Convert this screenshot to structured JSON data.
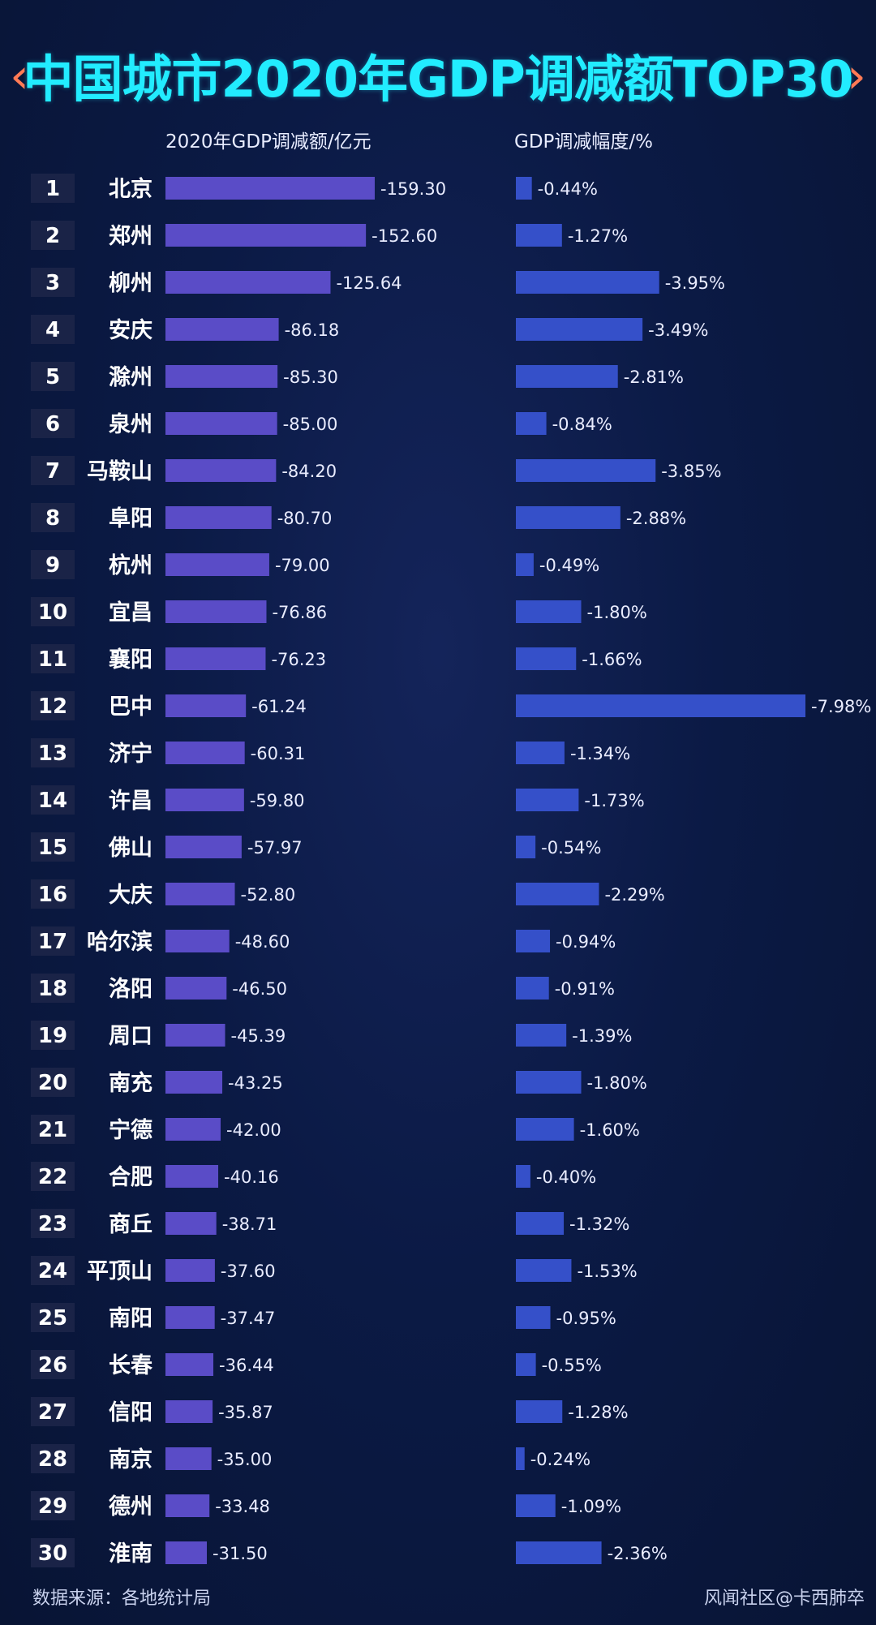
{
  "header": {
    "title": "中国城市2020年GDP调减额TOP30",
    "left_chevron": "‹",
    "right_chevron": "›"
  },
  "colors": {
    "title": "#22ecff",
    "chevron": "#ff7a55",
    "bar_left": "#5a4cc7",
    "bar_right": "#3550c9",
    "background": "#0b1a45"
  },
  "footer": {
    "source": "数据来源：各地统计局",
    "credit": "风闻社区@卡西肺卒"
  },
  "chart_data": [
    {
      "type": "bar",
      "orientation": "horizontal",
      "title": "2020年GDP调减额/亿元",
      "ranks": [
        "1",
        "2",
        "3",
        "4",
        "5",
        "6",
        "7",
        "8",
        "9",
        "10",
        "11",
        "12",
        "13",
        "14",
        "15",
        "16",
        "17",
        "18",
        "19",
        "20",
        "21",
        "22",
        "23",
        "24",
        "25",
        "26",
        "27",
        "28",
        "29",
        "30"
      ],
      "categories": [
        "北京",
        "郑州",
        "柳州",
        "安庆",
        "滁州",
        "泉州",
        "马鞍山",
        "阜阳",
        "杭州",
        "宜昌",
        "襄阳",
        "巴中",
        "济宁",
        "许昌",
        "佛山",
        "大庆",
        "哈尔滨",
        "洛阳",
        "周口",
        "南充",
        "宁德",
        "合肥",
        "商丘",
        "平顶山",
        "南阳",
        "长春",
        "信阳",
        "南京",
        "德州",
        "淮南"
      ],
      "values": [
        -159.3,
        -152.6,
        -125.64,
        -86.18,
        -85.3,
        -85.0,
        -84.2,
        -80.7,
        -79.0,
        -76.86,
        -76.23,
        -61.24,
        -60.31,
        -59.8,
        -57.97,
        -52.8,
        -48.6,
        -46.5,
        -45.39,
        -43.25,
        -42.0,
        -40.16,
        -38.71,
        -37.6,
        -37.47,
        -36.44,
        -35.87,
        -35.0,
        -33.48,
        -31.5
      ],
      "labels": [
        "-159.30",
        "-152.60",
        "-125.64",
        "-86.18",
        "-85.30",
        "-85.00",
        "-84.20",
        "-80.70",
        "-79.00",
        "-76.86",
        "-76.23",
        "-61.24",
        "-60.31",
        "-59.80",
        "-57.97",
        "-52.80",
        "-48.60",
        "-46.50",
        "-45.39",
        "-43.25",
        "-42.00",
        "-40.16",
        "-38.71",
        "-37.60",
        "-37.47",
        "-36.44",
        "-35.87",
        "-35.00",
        "-33.48",
        "-31.50"
      ],
      "color": "#5a4cc7"
    },
    {
      "type": "bar",
      "orientation": "horizontal",
      "title": "GDP调减幅度/%",
      "categories": [
        "北京",
        "郑州",
        "柳州",
        "安庆",
        "滁州",
        "泉州",
        "马鞍山",
        "阜阳",
        "杭州",
        "宜昌",
        "襄阳",
        "巴中",
        "济宁",
        "许昌",
        "佛山",
        "大庆",
        "哈尔滨",
        "洛阳",
        "周口",
        "南充",
        "宁德",
        "合肥",
        "商丘",
        "平顶山",
        "南阳",
        "长春",
        "信阳",
        "南京",
        "德州",
        "淮南"
      ],
      "values": [
        -0.44,
        -1.27,
        -3.95,
        -3.49,
        -2.81,
        -0.84,
        -3.85,
        -2.88,
        -0.49,
        -1.8,
        -1.66,
        -7.98,
        -1.34,
        -1.73,
        -0.54,
        -2.29,
        -0.94,
        -0.91,
        -1.39,
        -1.8,
        -1.6,
        -0.4,
        -1.32,
        -1.53,
        -0.95,
        -0.55,
        -1.28,
        -0.24,
        -1.09,
        -2.36
      ],
      "labels": [
        "-0.44%",
        "-1.27%",
        "-3.95%",
        "-3.49%",
        "-2.81%",
        "-0.84%",
        "-3.85%",
        "-2.88%",
        "-0.49%",
        "-1.80%",
        "-1.66%",
        "-7.98%",
        "-1.34%",
        "-1.73%",
        "-0.54%",
        "-2.29%",
        "-0.94%",
        "-0.91%",
        "-1.39%",
        "-1.80%",
        "-1.60%",
        "-0.40%",
        "-1.32%",
        "-1.53%",
        "-0.95%",
        "-0.55%",
        "-1.28%",
        "-0.24%",
        "-1.09%",
        "-2.36%"
      ],
      "color": "#3550c9"
    }
  ]
}
